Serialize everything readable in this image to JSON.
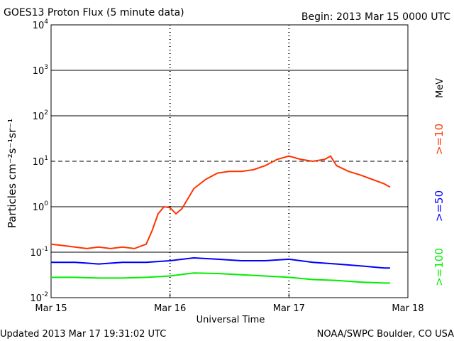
{
  "header": {
    "title": "GOES13 Proton Flux (5 minute data)",
    "begin": "Begin: 2013 Mar 15 0000 UTC"
  },
  "footer": {
    "updated": "Updated 2013 Mar 17 19:31:02 UTC",
    "credit": "NOAA/SWPC Boulder, CO USA"
  },
  "chart_data": {
    "type": "line",
    "title": "GOES13 Proton Flux (5 minute data)",
    "xlabel": "Universal Time",
    "ylabel": "Particles cm⁻²s⁻¹sr⁻¹",
    "y_scale": "log",
    "ylim": [
      0.01,
      10000
    ],
    "x_unit": "days since 2013 Mar 15 0000 UTC",
    "xlim": [
      0,
      3
    ],
    "x_ticks": [
      {
        "value": 0,
        "label": "Mar 15"
      },
      {
        "value": 1,
        "label": "Mar 16"
      },
      {
        "value": 2,
        "label": "Mar 17"
      },
      {
        "value": 3,
        "label": "Mar 18"
      }
    ],
    "y_ticks": [
      {
        "value": 0.01,
        "base": "10",
        "exp": "-2"
      },
      {
        "value": 0.1,
        "base": "10",
        "exp": "-1"
      },
      {
        "value": 1,
        "base": "10",
        "exp": "0"
      },
      {
        "value": 10,
        "base": "10",
        "exp": "1"
      },
      {
        "value": 100,
        "base": "10",
        "exp": "2"
      },
      {
        "value": 1000,
        "base": "10",
        "exp": "3"
      },
      {
        "value": 10000,
        "base": "10",
        "exp": "4"
      }
    ],
    "unit_label": "MeV",
    "series": [
      {
        "name": ">=10",
        "color": "#ff3300",
        "points": [
          [
            0.0,
            0.15
          ],
          [
            0.1,
            0.14
          ],
          [
            0.2,
            0.13
          ],
          [
            0.3,
            0.12
          ],
          [
            0.4,
            0.13
          ],
          [
            0.5,
            0.12
          ],
          [
            0.6,
            0.13
          ],
          [
            0.7,
            0.12
          ],
          [
            0.8,
            0.15
          ],
          [
            0.85,
            0.3
          ],
          [
            0.9,
            0.7
          ],
          [
            0.95,
            1.0
          ],
          [
            1.0,
            0.95
          ],
          [
            1.05,
            0.7
          ],
          [
            1.1,
            0.9
          ],
          [
            1.15,
            1.5
          ],
          [
            1.2,
            2.5
          ],
          [
            1.3,
            4.0
          ],
          [
            1.4,
            5.5
          ],
          [
            1.5,
            6.0
          ],
          [
            1.6,
            6.0
          ],
          [
            1.7,
            6.5
          ],
          [
            1.8,
            8.0
          ],
          [
            1.9,
            11.0
          ],
          [
            2.0,
            13.0
          ],
          [
            2.1,
            11.0
          ],
          [
            2.2,
            10.0
          ],
          [
            2.3,
            11.0
          ],
          [
            2.35,
            13.0
          ],
          [
            2.4,
            8.0
          ],
          [
            2.5,
            6.0
          ],
          [
            2.6,
            5.0
          ],
          [
            2.7,
            4.0
          ],
          [
            2.8,
            3.2
          ],
          [
            2.85,
            2.7
          ]
        ]
      },
      {
        "name": ">=50",
        "color": "#0000ff",
        "points": [
          [
            0.0,
            0.06
          ],
          [
            0.2,
            0.06
          ],
          [
            0.4,
            0.055
          ],
          [
            0.6,
            0.06
          ],
          [
            0.8,
            0.06
          ],
          [
            1.0,
            0.065
          ],
          [
            1.2,
            0.075
          ],
          [
            1.4,
            0.07
          ],
          [
            1.6,
            0.065
          ],
          [
            1.8,
            0.065
          ],
          [
            2.0,
            0.07
          ],
          [
            2.2,
            0.06
          ],
          [
            2.4,
            0.055
          ],
          [
            2.6,
            0.05
          ],
          [
            2.8,
            0.045
          ],
          [
            2.85,
            0.045
          ]
        ]
      },
      {
        "name": ">=100",
        "color": "#00ee00",
        "points": [
          [
            0.0,
            0.028
          ],
          [
            0.2,
            0.028
          ],
          [
            0.4,
            0.027
          ],
          [
            0.6,
            0.027
          ],
          [
            0.8,
            0.028
          ],
          [
            1.0,
            0.03
          ],
          [
            1.2,
            0.035
          ],
          [
            1.4,
            0.034
          ],
          [
            1.6,
            0.032
          ],
          [
            1.8,
            0.03
          ],
          [
            2.0,
            0.028
          ],
          [
            2.2,
            0.025
          ],
          [
            2.4,
            0.024
          ],
          [
            2.6,
            0.022
          ],
          [
            2.8,
            0.021
          ],
          [
            2.85,
            0.021
          ]
        ]
      }
    ],
    "threshold_lines": [
      {
        "value": 10,
        "style": "dashed"
      }
    ],
    "grid": "horizontal at decades"
  }
}
